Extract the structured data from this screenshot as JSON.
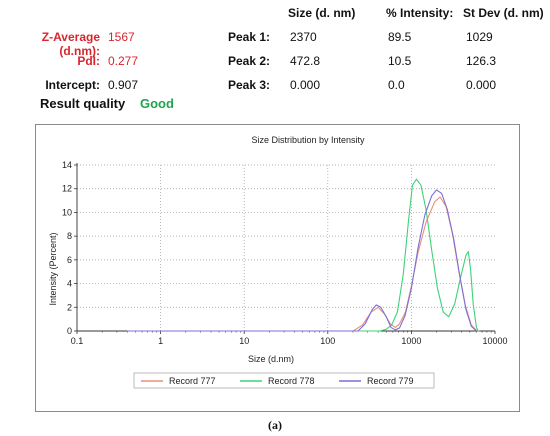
{
  "summary": {
    "z_average_label": "Z-Average (d.nm):",
    "z_average_value": "1567",
    "pdi_label": "PdI:",
    "pdi_value": "0.277",
    "intercept_label": "Intercept:",
    "intercept_value": "0.907",
    "result_quality_label": "Result quality",
    "result_quality_value": "Good",
    "colors": {
      "red": "#d8262e",
      "green": "#1ea44f"
    }
  },
  "peaks": {
    "headers": [
      "Size (d. nm)",
      "% Intensity:",
      "St Dev (d. nm)"
    ],
    "rows": [
      {
        "label": "Peak 1:",
        "size": "2370",
        "intensity": "89.5",
        "stdev": "1029"
      },
      {
        "label": "Peak 2:",
        "size": "472.8",
        "intensity": "10.5",
        "stdev": "126.3"
      },
      {
        "label": "Peak 3:",
        "size": "0.000",
        "intensity": "0.0",
        "stdev": "0.000"
      }
    ]
  },
  "chart_data": {
    "type": "line",
    "title": "Size Distribution by Intensity",
    "xlabel": "Size (d.nm)",
    "ylabel": "Intensity (Percent)",
    "xscale": "log",
    "xlim": [
      0.1,
      10000
    ],
    "ylim": [
      0,
      14
    ],
    "xticks": [
      "0.1",
      "1",
      "10",
      "100",
      "1000",
      "10000"
    ],
    "yticks": [
      "0",
      "2",
      "4",
      "6",
      "8",
      "10",
      "12",
      "14"
    ],
    "grid": "dotted",
    "legend_position": "bottom",
    "series": [
      {
        "name": "Record 777",
        "color": "#e8907a",
        "points": [
          [
            0.4,
            0
          ],
          [
            200,
            0
          ],
          [
            260,
            0.5
          ],
          [
            330,
            1.6
          ],
          [
            400,
            2.0
          ],
          [
            480,
            1.4
          ],
          [
            560,
            0.6
          ],
          [
            640,
            0.3
          ],
          [
            720,
            0.6
          ],
          [
            850,
            1.6
          ],
          [
            1000,
            3.8
          ],
          [
            1200,
            6.6
          ],
          [
            1500,
            9.2
          ],
          [
            1900,
            10.9
          ],
          [
            2200,
            11.3
          ],
          [
            2600,
            10.5
          ],
          [
            3100,
            8.2
          ],
          [
            3700,
            5.0
          ],
          [
            4400,
            2.2
          ],
          [
            5200,
            0.5
          ],
          [
            6000,
            0.05
          ],
          [
            6500,
            0
          ]
        ]
      },
      {
        "name": "Record 778",
        "color": "#3fd17a",
        "points": [
          [
            0.4,
            0
          ],
          [
            420,
            0
          ],
          [
            500,
            0.15
          ],
          [
            580,
            0.5
          ],
          [
            680,
            1.6
          ],
          [
            800,
            4.8
          ],
          [
            920,
            9.2
          ],
          [
            1030,
            12.3
          ],
          [
            1150,
            12.8
          ],
          [
            1300,
            12.3
          ],
          [
            1500,
            10.2
          ],
          [
            1750,
            6.8
          ],
          [
            2050,
            3.6
          ],
          [
            2400,
            1.6
          ],
          [
            2800,
            1.2
          ],
          [
            3300,
            2.3
          ],
          [
            3900,
            4.6
          ],
          [
            4500,
            6.4
          ],
          [
            4800,
            6.7
          ],
          [
            5100,
            5.2
          ],
          [
            5500,
            2.2
          ],
          [
            6000,
            0.3
          ],
          [
            6300,
            0
          ]
        ]
      },
      {
        "name": "Record 779",
        "color": "#7b6fd8",
        "points": [
          [
            0.4,
            0
          ],
          [
            230,
            0
          ],
          [
            280,
            0.6
          ],
          [
            340,
            1.8
          ],
          [
            380,
            2.2
          ],
          [
            430,
            2.0
          ],
          [
            500,
            1.2
          ],
          [
            570,
            0.3
          ],
          [
            640,
            0.1
          ],
          [
            720,
            0.25
          ],
          [
            840,
            1.3
          ],
          [
            1000,
            3.6
          ],
          [
            1200,
            7.0
          ],
          [
            1450,
            9.8
          ],
          [
            1750,
            11.4
          ],
          [
            2000,
            11.9
          ],
          [
            2300,
            11.6
          ],
          [
            2700,
            10.2
          ],
          [
            3200,
            7.8
          ],
          [
            3800,
            4.6
          ],
          [
            4500,
            1.8
          ],
          [
            5200,
            0.4
          ],
          [
            6000,
            0
          ]
        ]
      }
    ]
  },
  "caption": "(a)"
}
